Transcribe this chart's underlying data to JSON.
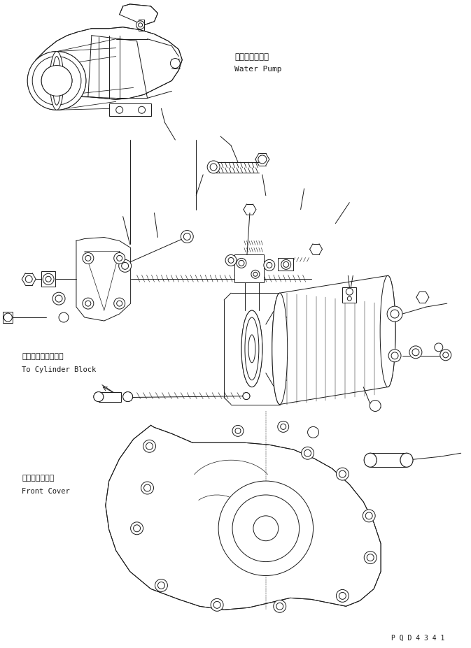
{
  "bg_color": "#ffffff",
  "line_color": "#1a1a1a",
  "lw": 0.7,
  "figsize": [
    6.73,
    9.28
  ],
  "dpi": 100,
  "labels": {
    "water_pump_jp": "ウォータポンプ",
    "water_pump_en": "Water Pump",
    "cylinder_jp": "シリンダブロックへ",
    "cylinder_en": "To Cylinder Block",
    "front_cover_jp": "フロントカバー",
    "front_cover_en": "Front Cover",
    "part_no": "P Q D 4 3 4 1"
  }
}
